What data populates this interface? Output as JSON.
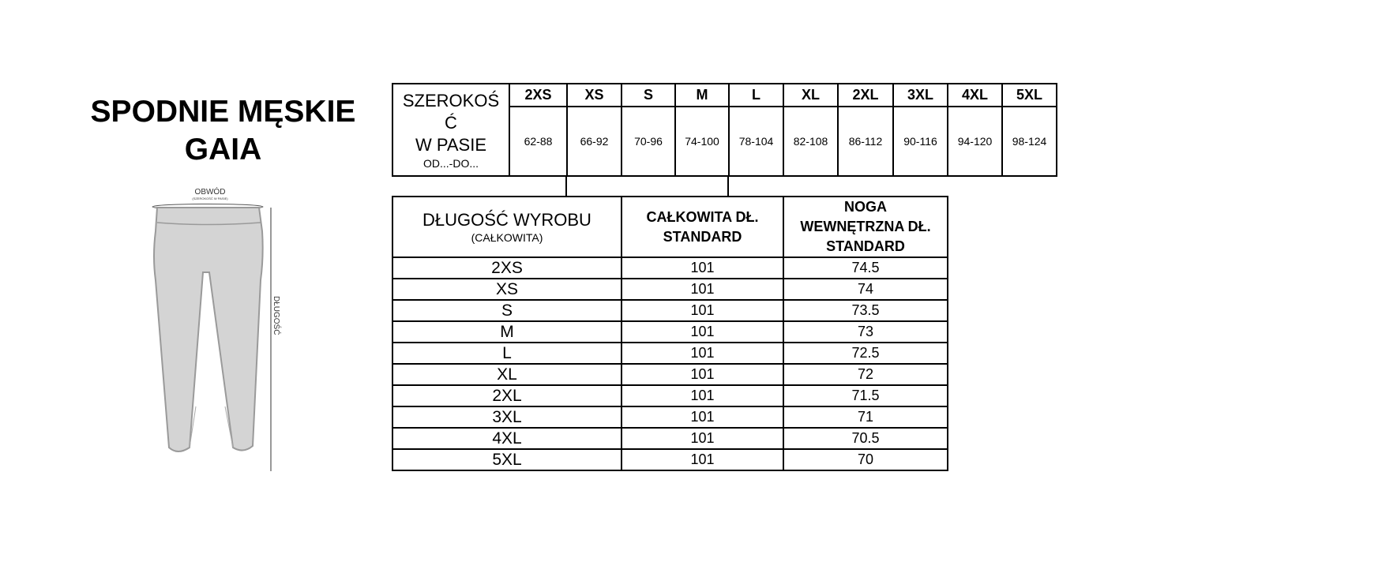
{
  "title": {
    "line1": "SPODNIE MĘSKIE",
    "line2": "GAIA"
  },
  "diagram": {
    "waist_label": "OBWÓD",
    "waist_sublabel": "(SZEROKOŚĆ W PASIE)",
    "length_label": "DŁUGOŚĆ",
    "fill_color": "#d4d4d4",
    "outline_color": "#9a9a9a"
  },
  "waist_table": {
    "label_line1": "SZEROKOŚ",
    "label_line2": "Ć",
    "label_line3": "W PASIE",
    "label_sub": "OD...-DO...",
    "sizes": [
      "2XS",
      "XS",
      "S",
      "M",
      "L",
      "XL",
      "2XL",
      "3XL",
      "4XL",
      "5XL"
    ],
    "values": [
      "62-88",
      "66-92",
      "70-96",
      "74-100",
      "78-104",
      "82-108",
      "86-112",
      "90-116",
      "94-120",
      "98-124"
    ]
  },
  "length_table": {
    "header_main": "DŁUGOŚĆ WYROBU",
    "header_sub": "(CAŁKOWITA)",
    "col2_line1": "CAŁKOWITA DŁ.",
    "col2_line2": "STANDARD",
    "col3_line1": "NOGA",
    "col3_line2": "WEWNĘTRZNA DŁ.",
    "col3_line3": "STANDARD",
    "rows": [
      {
        "size": "2XS",
        "total": "101",
        "inseam": "74.5"
      },
      {
        "size": "XS",
        "total": "101",
        "inseam": "74"
      },
      {
        "size": "S",
        "total": "101",
        "inseam": "73.5"
      },
      {
        "size": "M",
        "total": "101",
        "inseam": "73"
      },
      {
        "size": "L",
        "total": "101",
        "inseam": "72.5"
      },
      {
        "size": "XL",
        "total": "101",
        "inseam": "72"
      },
      {
        "size": "2XL",
        "total": "101",
        "inseam": "71.5"
      },
      {
        "size": "3XL",
        "total": "101",
        "inseam": "71"
      },
      {
        "size": "4XL",
        "total": "101",
        "inseam": "70.5"
      },
      {
        "size": "5XL",
        "total": "101",
        "inseam": "70"
      }
    ]
  }
}
